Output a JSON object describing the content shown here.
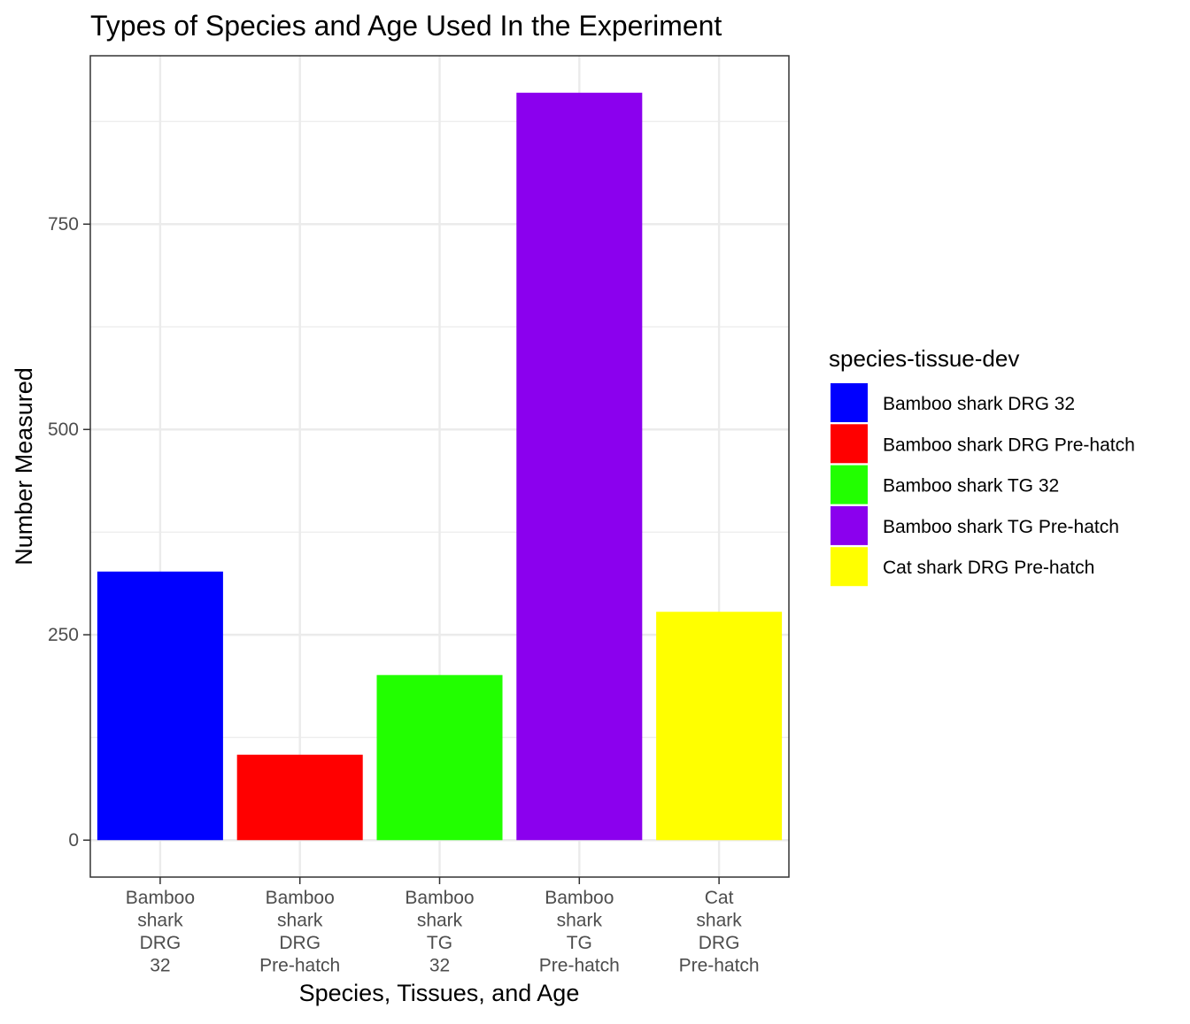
{
  "chart_data": {
    "type": "bar",
    "title": "Types of Species and Age Used In the Experiment",
    "xlabel": "Species, Tissues, and Age",
    "ylabel": "Number Measured",
    "categories": [
      [
        "Bamboo",
        "shark",
        "DRG",
        "32"
      ],
      [
        "Bamboo",
        "shark",
        "DRG",
        "Pre-hatch"
      ],
      [
        "Bamboo",
        "shark",
        "TG",
        "32"
      ],
      [
        "Bamboo",
        "shark",
        "TG",
        "Pre-hatch"
      ],
      [
        "Cat",
        "shark",
        "DRG",
        "Pre-hatch"
      ]
    ],
    "values": [
      327,
      104,
      201,
      910,
      278
    ],
    "colors": [
      "#0000FF",
      "#FF0000",
      "#22FF00",
      "#8B00EE",
      "#FFFF00"
    ],
    "ylim": [
      -45,
      955
    ],
    "yticks": [
      0,
      250,
      500,
      750
    ],
    "grid": true,
    "theme": "bw",
    "legend": {
      "title": "species-tissue-dev",
      "position": "right",
      "entries": [
        "Bamboo shark DRG 32",
        "Bamboo shark DRG Pre-hatch",
        "Bamboo shark TG 32",
        "Bamboo shark TG Pre-hatch",
        "Cat shark DRG Pre-hatch"
      ]
    }
  }
}
